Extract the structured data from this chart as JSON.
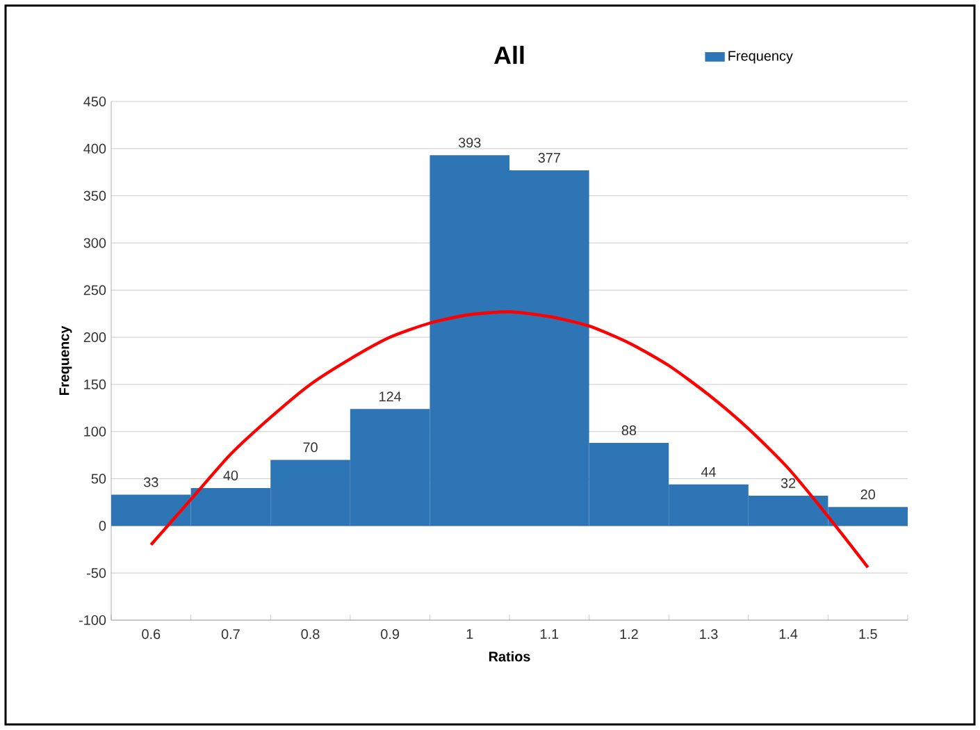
{
  "chart_data": {
    "type": "bar",
    "title": "All",
    "xlabel": "Ratios",
    "ylabel": "Frequency",
    "xlim": [
      0.55,
      1.55
    ],
    "xticks": [
      0.6,
      0.7,
      0.8,
      0.9,
      1,
      1.1,
      1.2,
      1.3,
      1.4,
      1.5,
      {
        "value": 0.55,
        "label": null
      },
      {
        "value": 0.65,
        "label": null
      },
      {
        "value": 0.75,
        "label": null
      },
      {
        "value": 0.85,
        "label": null
      },
      {
        "value": 0.95,
        "label": null
      },
      {
        "value": 1.05,
        "label": null
      },
      {
        "value": 1.15,
        "label": null
      },
      {
        "value": 1.25,
        "label": null
      },
      {
        "value": 1.35,
        "label": null
      },
      {
        "value": 1.45,
        "label": null
      },
      {
        "value": 1.55,
        "label": null
      }
    ],
    "ylim": [
      -100,
      450
    ],
    "yticks": [
      -100,
      -50,
      0,
      50,
      100,
      150,
      200,
      250,
      300,
      350,
      400,
      450
    ],
    "grid": "y",
    "legend": "top right",
    "series": [
      {
        "name": "Frequency",
        "color": "#2e75b6",
        "x": [
          0.6,
          0.7,
          0.8,
          0.9,
          1,
          1.1,
          1.2,
          1.3,
          1.4,
          1.5
        ],
        "values": [
          33,
          40,
          70,
          124,
          393,
          377,
          88,
          44,
          32,
          20
        ],
        "value_labels": [
          "33",
          "40",
          "70",
          "124",
          "393",
          "377",
          "88",
          "44",
          "32",
          "20"
        ]
      },
      {
        "type": "line",
        "color": "#ff0000",
        "x": [
          0.6,
          0.65,
          0.7,
          0.75,
          0.8,
          0.85,
          0.9,
          0.95,
          1.0,
          1.05,
          1.1,
          1.15,
          1.2,
          1.25,
          1.3,
          1.35,
          1.4,
          1.45,
          1.5
        ],
        "values": [
          -20,
          28,
          76,
          115,
          150,
          177,
          200,
          215,
          224,
          227,
          222,
          212,
          194,
          170,
          139,
          103,
          61,
          10,
          -44
        ]
      }
    ]
  }
}
